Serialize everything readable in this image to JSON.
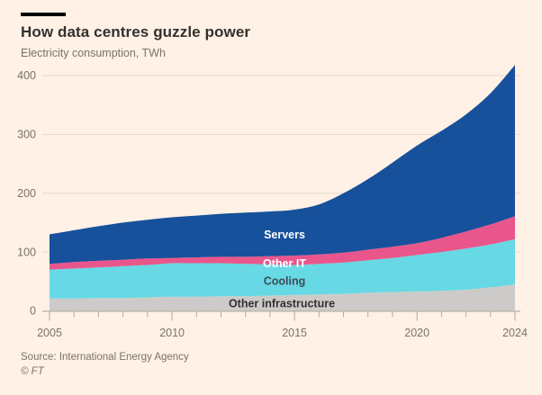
{
  "header": {
    "title": "How data centres guzzle power",
    "subtitle": "Electricity consumption, TWh"
  },
  "footer": {
    "source": "Source: International Energy Agency",
    "copyright": "© FT"
  },
  "colors": {
    "background": "#fff1e5",
    "title_text": "#33302e",
    "muted_text": "#7c7268",
    "gridline": "#e6d9cb",
    "tick": "#b3a99f",
    "servers": "#17509b",
    "other_it": "#e9568c",
    "cooling": "#66d9e5",
    "other_infrastructure": "#cccbc9"
  },
  "chart_data": {
    "type": "area",
    "stacked": true,
    "title": "How data centres guzzle power",
    "subtitle": "Electricity consumption, TWh",
    "ylabel": "Electricity consumption, TWh",
    "xlabel": "",
    "unit": "TWh",
    "grid": "horizontal",
    "legend_position": "inline-labels",
    "x": [
      2005,
      2006,
      2007,
      2008,
      2009,
      2010,
      2011,
      2012,
      2013,
      2014,
      2015,
      2016,
      2017,
      2018,
      2019,
      2020,
      2021,
      2022,
      2023,
      2024
    ],
    "series": [
      {
        "name": "Other infrastructure",
        "color": "#cccbc9",
        "label_color": "#33302e",
        "values": [
          21,
          21,
          22,
          22,
          23,
          24,
          24,
          25,
          25,
          26,
          27,
          28,
          29,
          31,
          32,
          33,
          34,
          36,
          40,
          45
        ]
      },
      {
        "name": "Cooling",
        "color": "#66d9e5",
        "label_color": "#3f4a54",
        "values": [
          49,
          51,
          52,
          54,
          55,
          57,
          57,
          56,
          55,
          53,
          51,
          52,
          53,
          55,
          58,
          62,
          66,
          70,
          73,
          77
        ]
      },
      {
        "name": "Other IT",
        "color": "#e9568c",
        "label_color": "#ffffff",
        "values": [
          10,
          11,
          11,
          11,
          11,
          9,
          10,
          11,
          12,
          14,
          16,
          16,
          17,
          18,
          19,
          20,
          24,
          29,
          34,
          39
        ]
      },
      {
        "name": "Servers",
        "color": "#17509b",
        "label_color": "#ffffff",
        "values": [
          50,
          54,
          59,
          63,
          66,
          69,
          71,
          73,
          75,
          76,
          78,
          85,
          101,
          120,
          143,
          166,
          182,
          199,
          223,
          257
        ]
      }
    ],
    "totals_by_year_hint": {
      "2005": 130,
      "2010": 159,
      "2015": 172,
      "2020": 281,
      "2024": 418
    },
    "series_labels": [
      {
        "text": "Servers",
        "x": 316,
        "y": 265,
        "color": "#ffffff"
      },
      {
        "text": "Other IT",
        "x": 316,
        "y": 297,
        "color": "#ffffff"
      },
      {
        "text": "Cooling",
        "x": 316,
        "y": 316.5,
        "color": "#3f4a54"
      },
      {
        "text": "Other infrastructure",
        "x": 313,
        "y": 341.5,
        "color": "#33302e"
      }
    ],
    "yticks": [
      0,
      100,
      200,
      300,
      400
    ],
    "xticks_labeled": [
      2005,
      2010,
      2015,
      2020,
      2024
    ],
    "ylim": [
      0,
      430
    ],
    "xlim": [
      2005,
      2024
    ]
  }
}
